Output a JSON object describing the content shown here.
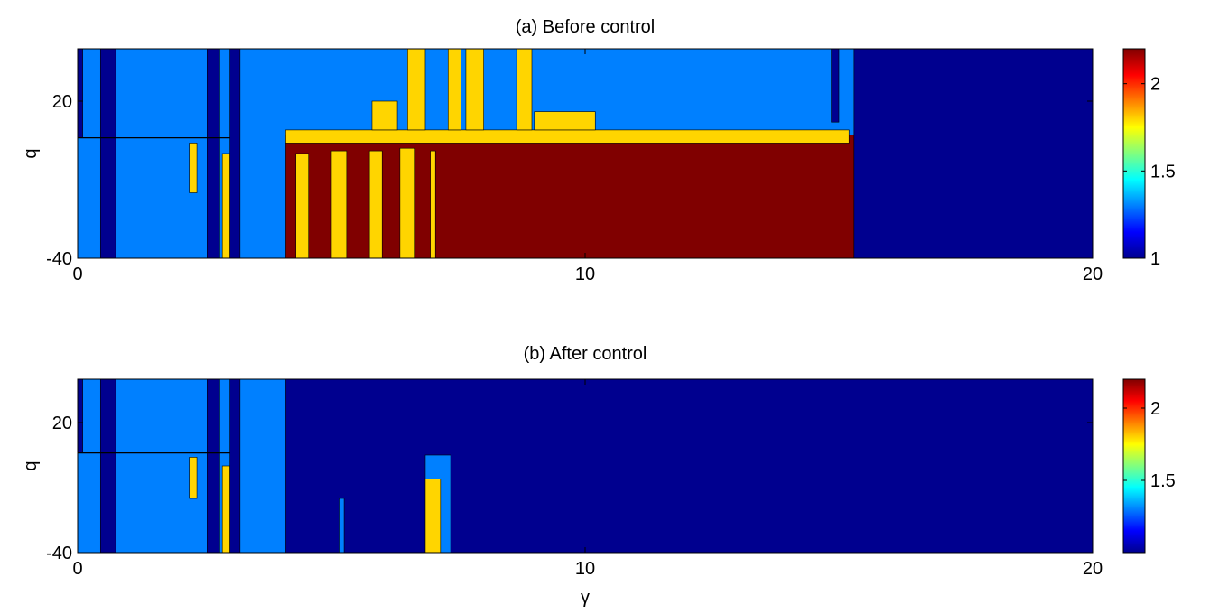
{
  "chart_data": [
    {
      "type": "heatmap",
      "panel": "a",
      "title": "(a) Before control",
      "xlabel": "",
      "ylabel": "q",
      "xlim": [
        0,
        20
      ],
      "ylim": [
        -40,
        40
      ],
      "xticks": [
        0,
        10,
        20
      ],
      "yticks": [
        -40,
        20
      ],
      "colorbar": {
        "min": 1.0,
        "max": 2.2,
        "ticks": [
          1,
          1.5,
          2
        ],
        "colormap": "jet"
      },
      "background_level": 1.3,
      "regions": [
        {
          "x": [
            0.0,
            0.1
          ],
          "y": [
            6,
            40
          ],
          "level": 1.0
        },
        {
          "x": [
            0.45,
            0.75
          ],
          "y": [
            -40,
            40
          ],
          "level": 1.0
        },
        {
          "x": [
            2.2,
            2.35
          ],
          "y": [
            -15,
            4
          ],
          "level": 1.8
        },
        {
          "x": [
            2.55,
            2.8
          ],
          "y": [
            -40,
            40
          ],
          "level": 1.0
        },
        {
          "x": [
            2.85,
            3.0
          ],
          "y": [
            -40,
            0
          ],
          "level": 1.8
        },
        {
          "x": [
            3.0,
            3.2
          ],
          "y": [
            -40,
            40
          ],
          "level": 1.0
        },
        {
          "x": [
            4.1,
            15.3
          ],
          "y": [
            -40,
            7
          ],
          "level": 2.2
        },
        {
          "x": [
            4.3,
            4.55
          ],
          "y": [
            -40,
            0
          ],
          "level": 1.8
        },
        {
          "x": [
            5.0,
            5.3
          ],
          "y": [
            -40,
            1
          ],
          "level": 1.8
        },
        {
          "x": [
            5.75,
            6.0
          ],
          "y": [
            -40,
            1
          ],
          "level": 1.8
        },
        {
          "x": [
            6.35,
            6.65
          ],
          "y": [
            -40,
            2
          ],
          "level": 1.8
        },
        {
          "x": [
            6.95,
            7.05
          ],
          "y": [
            -40,
            1
          ],
          "level": 1.8
        },
        {
          "x": [
            15.3,
            20.0
          ],
          "y": [
            -40,
            40
          ],
          "level": 1.0
        },
        {
          "x": [
            14.85,
            15.0
          ],
          "y": [
            12,
            40
          ],
          "level": 1.0
        }
      ],
      "ridges": [
        {
          "x": [
            4.1,
            15.2
          ],
          "y": [
            4,
            9
          ],
          "level": 1.8
        },
        {
          "x": [
            6.5,
            6.85
          ],
          "y": [
            9,
            40
          ],
          "level": 1.8
        },
        {
          "x": [
            7.3,
            7.55
          ],
          "y": [
            9,
            40
          ],
          "level": 1.8
        },
        {
          "x": [
            7.65,
            8.0
          ],
          "y": [
            9,
            40
          ],
          "level": 1.8
        },
        {
          "x": [
            8.65,
            8.95
          ],
          "y": [
            9,
            40
          ],
          "level": 1.8
        },
        {
          "x": [
            5.8,
            6.3
          ],
          "y": [
            9,
            20
          ],
          "level": 1.8
        },
        {
          "x": [
            9.0,
            10.2
          ],
          "y": [
            9,
            16
          ],
          "level": 1.8
        }
      ]
    },
    {
      "type": "heatmap",
      "panel": "b",
      "title": "(b) After control",
      "xlabel": "γ",
      "ylabel": "q",
      "xlim": [
        0,
        20
      ],
      "ylim": [
        -40,
        40
      ],
      "xticks": [
        0,
        10,
        20
      ],
      "yticks": [
        -40,
        20
      ],
      "colorbar": {
        "min": 1.0,
        "max": 2.2,
        "ticks": [
          1.5,
          2
        ],
        "colormap": "jet"
      },
      "background_level": 1.3,
      "regions": [
        {
          "x": [
            0.0,
            0.1
          ],
          "y": [
            6,
            40
          ],
          "level": 1.0
        },
        {
          "x": [
            0.45,
            0.75
          ],
          "y": [
            -40,
            40
          ],
          "level": 1.0
        },
        {
          "x": [
            2.2,
            2.35
          ],
          "y": [
            -15,
            4
          ],
          "level": 1.8
        },
        {
          "x": [
            2.55,
            2.8
          ],
          "y": [
            -40,
            40
          ],
          "level": 1.0
        },
        {
          "x": [
            2.85,
            3.0
          ],
          "y": [
            -40,
            0
          ],
          "level": 1.8
        },
        {
          "x": [
            3.0,
            3.2
          ],
          "y": [
            -40,
            40
          ],
          "level": 1.0
        },
        {
          "x": [
            4.1,
            20.0
          ],
          "y": [
            -40,
            40
          ],
          "level": 1.0
        },
        {
          "x": [
            6.85,
            7.35
          ],
          "y": [
            -40,
            5
          ],
          "level": 1.3
        },
        {
          "x": [
            6.85,
            7.15
          ],
          "y": [
            -40,
            -6
          ],
          "level": 1.8
        },
        {
          "x": [
            5.15,
            5.25
          ],
          "y": [
            -40,
            -15
          ],
          "level": 1.3
        }
      ],
      "ridges": []
    }
  ]
}
